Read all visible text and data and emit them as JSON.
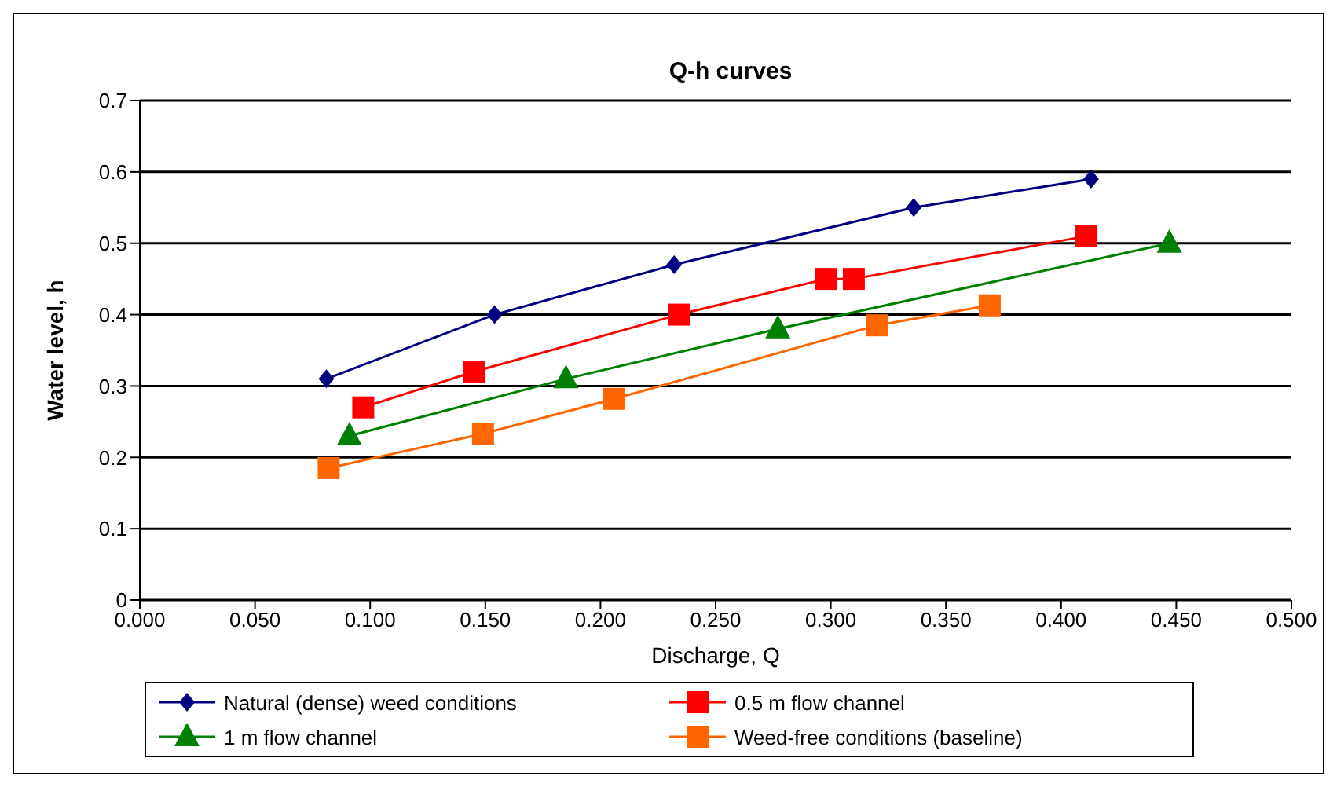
{
  "chart_data": {
    "type": "line",
    "title": "Q-h curves",
    "xlabel": "Discharge, Q",
    "ylabel": "Water level, h",
    "xlim": [
      0,
      0.5
    ],
    "xticks": [
      {
        "value": 0,
        "label": "0.000"
      },
      {
        "value": 0.05,
        "label": "0.050"
      },
      {
        "value": 0.1,
        "label": "0.100"
      },
      {
        "value": 0.15,
        "label": "0.150"
      },
      {
        "value": 0.2,
        "label": "0.200"
      },
      {
        "value": 0.25,
        "label": "0.250"
      },
      {
        "value": 0.3,
        "label": "0.300"
      },
      {
        "value": 0.35,
        "label": "0.350"
      },
      {
        "value": 0.4,
        "label": "0.400"
      },
      {
        "value": 0.45,
        "label": "0.450"
      },
      {
        "value": 0.5,
        "label": "0.500"
      }
    ],
    "ylim": [
      0,
      0.7
    ],
    "yticks": [
      0,
      0.1,
      0.2,
      0.3,
      0.4,
      0.5,
      0.6,
      0.7
    ],
    "grid": "y",
    "legend": "bottom",
    "line_style": "solid",
    "series": [
      {
        "name": "Natural (dense) weed conditions",
        "color": "#000080",
        "marker": "diamond",
        "x": [
          0.081,
          0.154,
          0.232,
          0.336,
          0.413
        ],
        "values": [
          0.31,
          0.4,
          0.47,
          0.55,
          0.59
        ]
      },
      {
        "name": "0.5 m flow channel",
        "color": "#ff0000",
        "marker": "square",
        "x": [
          0.097,
          0.145,
          0.234,
          0.298,
          0.31,
          0.411
        ],
        "values": [
          0.27,
          0.32,
          0.4,
          0.45,
          0.45,
          0.51
        ]
      },
      {
        "name": "1 m flow channel",
        "color": "#008000",
        "marker": "triangle",
        "x": [
          0.091,
          0.185,
          0.277,
          0.447
        ],
        "values": [
          0.23,
          0.31,
          0.38,
          0.5
        ]
      },
      {
        "name": "Weed-free conditions (baseline)",
        "color": "#ff6600",
        "marker": "square",
        "x": [
          0.082,
          0.149,
          0.206,
          0.32,
          0.369
        ],
        "values": [
          0.185,
          0.233,
          0.282,
          0.385,
          0.413
        ]
      }
    ]
  }
}
